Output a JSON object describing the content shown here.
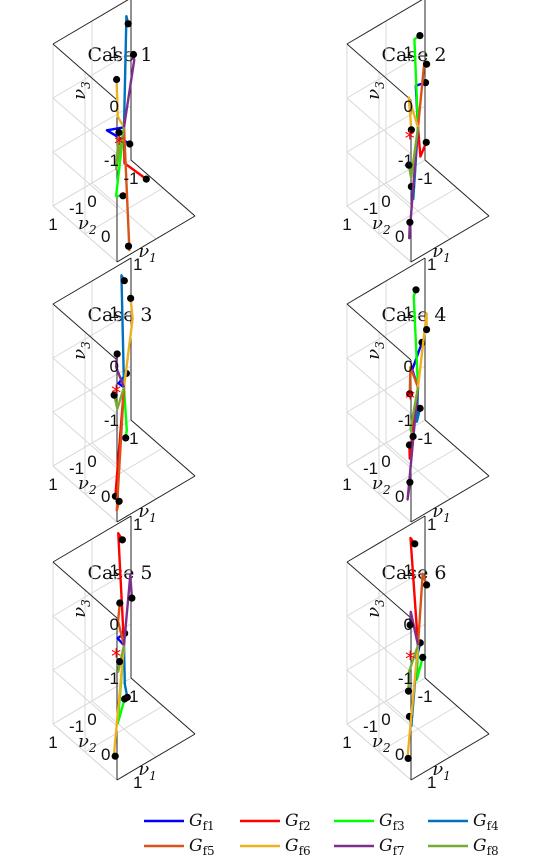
{
  "figure": {
    "legend_entries": [
      "G_f1",
      "G_f2",
      "G_f3",
      "G_f4",
      "G_f5",
      "G_f6",
      "G_f7",
      "G_f8"
    ]
  },
  "chart_data": [
    {
      "type": "line3d",
      "title": "Case 1",
      "xlabel": "ν1",
      "ylabel": "ν2",
      "zlabel": "ν3",
      "xlim": [
        -1,
        1
      ],
      "ylim": [
        -1,
        1
      ],
      "zlim": [
        -1,
        1
      ],
      "xticks": [
        "-1",
        "0",
        "1"
      ],
      "yticks": [
        "-1",
        "0",
        "1"
      ],
      "zticks": [
        "-1",
        "0",
        "1"
      ],
      "grid": true,
      "series": [
        {
          "name": "G_f1",
          "color": "#0000ff",
          "end": [
            -0.9,
            -0.3,
            -0.1
          ],
          "marker": [
            -0.55,
            -0.6,
            -0.3
          ]
        },
        {
          "name": "G_f2",
          "color": "#ff0000",
          "end": [
            -0.9,
            -0.75,
            -0.9
          ],
          "marker": [
            -0.4,
            -0.9,
            -1.0
          ]
        },
        {
          "name": "G_f3",
          "color": "#00ff00",
          "end": [
            0.85,
            0.9,
            0.1
          ],
          "marker": [
            0.7,
            0.6,
            -0.1
          ]
        },
        {
          "name": "G_f4",
          "color": "#0072bd",
          "end": [
            -0.9,
            -0.8,
            1.8
          ],
          "marker": [
            -0.6,
            -0.6,
            1.9
          ]
        },
        {
          "name": "G_f5",
          "color": "#d95319",
          "end": [
            0.9,
            0.6,
            -1.0
          ],
          "marker": [
            0.75,
            0.5,
            -1.05
          ]
        },
        {
          "name": "G_f6",
          "color": "#edb120",
          "end": [
            0.9,
            0.9,
            1.6
          ],
          "marker": [
            0.5,
            0.6,
            1.95
          ]
        },
        {
          "name": "G_f7",
          "color": "#7e2f8e",
          "end": [
            -0.9,
            -1.0,
            0.9
          ],
          "marker": [
            -0.8,
            -0.9,
            1.1
          ]
        },
        {
          "name": "G_f8",
          "color": "#77ac30",
          "end": [
            0.85,
            0.9,
            0.6
          ],
          "marker": [
            0.45,
            0.5,
            0.9
          ]
        }
      ],
      "red_marker": [
        0.95,
        0.9,
        1.1
      ]
    },
    {
      "type": "line3d",
      "title": "Case 2",
      "xlabel": "ν1",
      "ylabel": "ν2",
      "zlabel": "ν3",
      "xlim": [
        -1,
        1
      ],
      "ylim": [
        -1,
        1
      ],
      "zlim": [
        -1,
        1
      ],
      "xticks": [
        "-1",
        "0",
        "1"
      ],
      "yticks": [
        "-1",
        "0",
        "1"
      ],
      "zticks": [
        "-1",
        "0",
        "1"
      ],
      "grid": true,
      "series": [
        {
          "name": "G_f1",
          "color": "#0000ff",
          "end": [
            -0.8,
            -0.6,
            0.65
          ],
          "marker": [
            -0.8,
            -0.85,
            0.6
          ]
        },
        {
          "name": "G_f2",
          "color": "#ff0000",
          "end": [
            -0.9,
            -0.8,
            -0.8
          ],
          "marker": [
            -0.9,
            -0.95,
            -0.6
          ]
        },
        {
          "name": "G_f3",
          "color": "#00ff00",
          "end": [
            -0.6,
            -0.4,
            1.7
          ],
          "marker": [
            -0.55,
            -0.5,
            1.75
          ]
        },
        {
          "name": "G_f4",
          "color": "#0072bd",
          "end": [
            0.95,
            0.9,
            0.1
          ],
          "marker": [
            0.95,
            0.95,
            0.35
          ]
        },
        {
          "name": "G_f5",
          "color": "#d95319",
          "end": [
            -0.9,
            -0.9,
            0.9
          ],
          "marker": [
            -0.95,
            -1.0,
            0.8
          ]
        },
        {
          "name": "G_f6",
          "color": "#edb120",
          "end": [
            0.75,
            0.85,
            1.85
          ],
          "marker": [
            0.95,
            0.95,
            1.4
          ]
        },
        {
          "name": "G_f7",
          "color": "#7e2f8e",
          "end": [
            0.7,
            0.8,
            -0.8
          ],
          "marker": [
            0.6,
            0.7,
            -0.6
          ]
        },
        {
          "name": "G_f8",
          "color": "#77ac30",
          "end": [
            0.7,
            0.75,
            0.3
          ],
          "marker": [
            0.75,
            0.85,
            0.6
          ]
        }
      ],
      "red_marker": [
        0.9,
        0.95,
        1.2
      ]
    },
    {
      "type": "line3d",
      "title": "Case 3",
      "xlabel": "ν1",
      "ylabel": "ν2",
      "zlabel": "ν3",
      "xlim": [
        -1,
        1
      ],
      "ylim": [
        -1,
        1
      ],
      "zlim": [
        -1,
        1
      ],
      "xticks": [
        "-1",
        "0",
        "1"
      ],
      "yticks": [
        "-1",
        "0",
        "1"
      ],
      "zticks": [
        "-1",
        "0",
        "1"
      ],
      "grid": true,
      "series": [
        {
          "name": "G_f1",
          "color": "#0000ff",
          "end": [
            -0.9,
            -0.6,
            -0.1
          ],
          "marker": [
            -0.9,
            -0.8,
            0.0
          ]
        },
        {
          "name": "G_f2",
          "color": "#ff0000",
          "end": [
            0.9,
            0.95,
            -0.5
          ],
          "marker": [
            0.95,
            1.0,
            -0.55
          ]
        },
        {
          "name": "G_f3",
          "color": "#00ff00",
          "end": [
            -0.95,
            -0.85,
            -1.1
          ],
          "marker": [
            -0.8,
            -0.7,
            -1.1
          ]
        },
        {
          "name": "G_f4",
          "color": "#0072bd",
          "end": [
            -0.75,
            -0.55,
            2.0
          ],
          "marker": [
            -0.6,
            -0.5,
            2.0
          ]
        },
        {
          "name": "G_f5",
          "color": "#d95319",
          "end": [
            0.75,
            0.8,
            -1.0
          ],
          "marker": [
            0.7,
            0.7,
            -0.9
          ]
        },
        {
          "name": "G_f6",
          "color": "#edb120",
          "end": [
            -0.95,
            -1.0,
            0.9
          ],
          "marker": [
            -0.95,
            -0.95,
            1.3
          ]
        },
        {
          "name": "G_f7",
          "color": "#7e2f8e",
          "end": [
            0.85,
            0.9,
            1.75
          ],
          "marker": [
            0.7,
            0.75,
            1.85
          ]
        },
        {
          "name": "G_f8",
          "color": "#77ac30",
          "end": [
            0.95,
            0.95,
            1.05
          ],
          "marker": [
            0.85,
            0.95,
            1.25
          ]
        }
      ],
      "red_marker": [
        0.85,
        0.9,
        1.25
      ]
    },
    {
      "type": "line3d",
      "title": "Case 4",
      "xlabel": "ν1",
      "ylabel": "ν2",
      "zlabel": "ν3",
      "xlim": [
        -1,
        1
      ],
      "ylim": [
        -1,
        1
      ],
      "zlim": [
        -1,
        1
      ],
      "xticks": [
        "-1",
        "0",
        "1"
      ],
      "yticks": [
        "-1",
        "0",
        "1"
      ],
      "zticks": [
        "-1",
        "0",
        "1"
      ],
      "grid": true,
      "series": [
        {
          "name": "G_f1",
          "color": "#0000ff",
          "end": [
            -0.85,
            -0.55,
            0.2
          ],
          "marker": [
            -0.85,
            -0.8,
            0.6
          ]
        },
        {
          "name": "G_f2",
          "color": "#ff0000",
          "end": [
            0.9,
            0.95,
            0.1
          ],
          "marker": [
            0.95,
            1.0,
            0.4
          ]
        },
        {
          "name": "G_f3",
          "color": "#00ff00",
          "end": [
            -0.5,
            -0.3,
            1.85
          ],
          "marker": [
            -0.55,
            -0.4,
            1.9
          ]
        },
        {
          "name": "G_f4",
          "color": "#0072bd",
          "end": [
            -0.95,
            -0.75,
            -0.9
          ],
          "marker": [
            -0.85,
            -0.75,
            -0.6
          ]
        },
        {
          "name": "G_f5",
          "color": "#d95319",
          "end": [
            0.8,
            0.85,
            1.7
          ],
          "marker": [
            0.9,
            0.95,
            1.3
          ]
        },
        {
          "name": "G_f6",
          "color": "#edb120",
          "end": [
            -0.95,
            -1.0,
            1.0
          ],
          "marker": [
            -0.95,
            -1.0,
            0.7
          ]
        },
        {
          "name": "G_f7",
          "color": "#7e2f8e",
          "end": [
            0.65,
            0.8,
            -0.85
          ],
          "marker": [
            0.6,
            0.7,
            -0.6
          ]
        },
        {
          "name": "G_f8",
          "color": "#77ac30",
          "end": [
            0.8,
            0.85,
            0.55
          ],
          "marker": [
            0.7,
            0.7,
            0.3
          ]
        }
      ],
      "red_marker": [
        0.85,
        0.9,
        1.15
      ]
    },
    {
      "type": "line3d",
      "title": "Case 5",
      "xlabel": "ν1",
      "ylabel": "ν2",
      "zlabel": "ν3",
      "xlim": [
        -1,
        1
      ],
      "ylim": [
        -1,
        1
      ],
      "zlim": [
        -1,
        1
      ],
      "xticks": [
        "-1",
        "0",
        "1"
      ],
      "yticks": [
        "-1",
        "0",
        "1"
      ],
      "zticks": [
        "-1",
        "0",
        "1"
      ],
      "grid": true,
      "series": [
        {
          "name": "G_f1",
          "color": "#0000ff",
          "end": [
            -0.75,
            -0.45,
            0.1
          ],
          "marker": [
            -0.65,
            -0.55,
            0.2
          ]
        },
        {
          "name": "G_f2",
          "color": "#ff0000",
          "end": [
            -0.85,
            -0.55,
            1.95
          ],
          "marker": [
            -0.6,
            -0.45,
            2.0
          ]
        },
        {
          "name": "G_f3",
          "color": "#00ff00",
          "end": [
            0.9,
            0.9,
            -0.05
          ],
          "marker": [
            0.75,
            0.6,
            0.2
          ]
        },
        {
          "name": "G_f4",
          "color": "#0072bd",
          "end": [
            -0.95,
            -0.8,
            -1.0
          ],
          "marker": [
            -0.75,
            -0.7,
            -1.1
          ]
        },
        {
          "name": "G_f5",
          "color": "#d95319",
          "end": [
            0.85,
            0.85,
            1.8
          ],
          "marker": [
            0.6,
            0.6,
            1.9
          ]
        },
        {
          "name": "G_f6",
          "color": "#edb120",
          "end": [
            0.85,
            0.95,
            -0.6
          ],
          "marker": [
            0.7,
            0.8,
            -0.8
          ]
        },
        {
          "name": "G_f7",
          "color": "#7e2f8e",
          "end": [
            -0.9,
            -0.9,
            1.0
          ],
          "marker": [
            -0.85,
            -0.9,
            0.6
          ]
        },
        {
          "name": "G_f8",
          "color": "#77ac30",
          "end": [
            0.55,
            0.6,
            0.6
          ],
          "marker": [
            0.35,
            0.4,
            0.6
          ]
        }
      ],
      "red_marker": [
        0.85,
        0.9,
        1.15
      ]
    },
    {
      "type": "line3d",
      "title": "Case 6",
      "xlabel": "ν1",
      "ylabel": "ν2",
      "zlabel": "ν3",
      "xlim": [
        -1,
        1
      ],
      "ylim": [
        -1,
        1
      ],
      "zlim": [
        -1,
        1
      ],
      "xticks": [
        "-1",
        "0",
        "1"
      ],
      "yticks": [
        "-1",
        "0",
        "1"
      ],
      "zticks": [
        "-1",
        "0",
        "1"
      ],
      "grid": true,
      "series": [
        {
          "name": "G_f1",
          "color": "#0000ff",
          "end": [
            -0.6,
            -0.45,
            -0.2
          ],
          "marker": [
            -0.6,
            -0.55,
            0.05
          ]
        },
        {
          "name": "G_f2",
          "color": "#ff0000",
          "end": [
            -0.6,
            -0.3,
            2.1
          ],
          "marker": [
            -0.65,
            -0.45,
            1.9
          ]
        },
        {
          "name": "G_f3",
          "color": "#00ff00",
          "end": [
            -0.95,
            -0.75,
            -0.9
          ],
          "marker": [
            -0.95,
            -0.9,
            -0.55
          ]
        },
        {
          "name": "G_f4",
          "color": "#0072bd",
          "end": [
            0.95,
            0.95,
            -0.05
          ],
          "marker": [
            0.95,
            1.0,
            0.15
          ]
        },
        {
          "name": "G_f5",
          "color": "#d95319",
          "end": [
            -0.95,
            -0.9,
            1.0
          ],
          "marker": [
            -0.95,
            -1.0,
            0.75
          ]
        },
        {
          "name": "G_f6",
          "color": "#edb120",
          "end": [
            0.7,
            0.85,
            -0.85
          ],
          "marker": [
            0.85,
            0.95,
            -0.7
          ]
        },
        {
          "name": "G_f7",
          "color": "#7e2f8e",
          "end": [
            0.75,
            0.8,
            1.9
          ],
          "marker": [
            0.85,
            0.9,
            1.75
          ]
        },
        {
          "name": "G_f8",
          "color": "#77ac30",
          "end": [
            0.75,
            0.85,
            0.8
          ],
          "marker": [
            0.8,
            0.9,
            0.5
          ]
        }
      ],
      "red_marker": [
        0.85,
        0.9,
        1.1
      ]
    }
  ]
}
